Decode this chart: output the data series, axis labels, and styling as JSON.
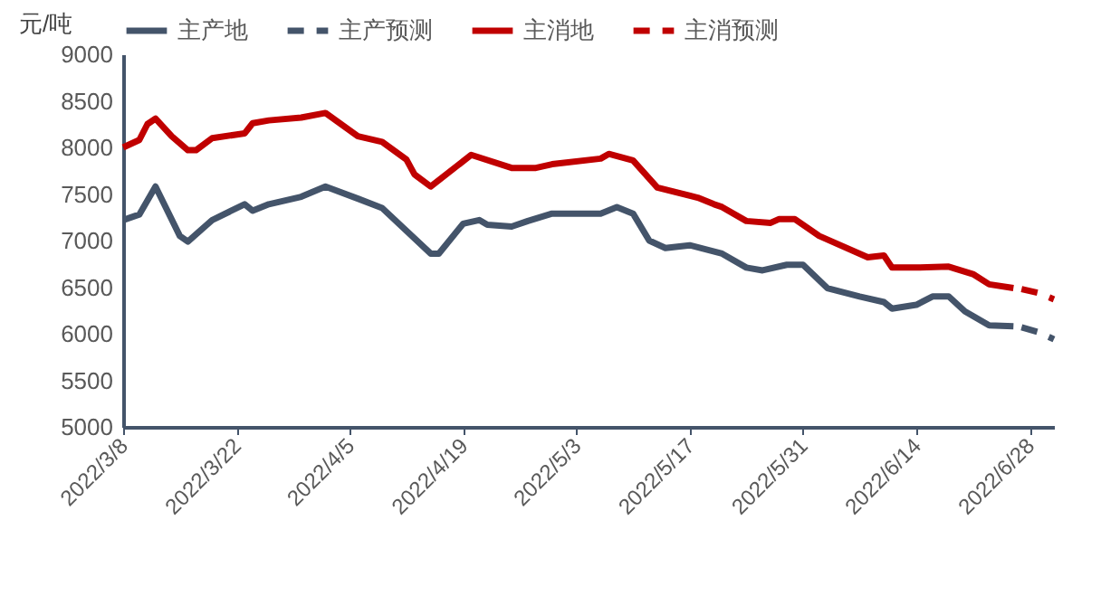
{
  "chart_data": {
    "type": "line",
    "ylabel": "元/吨",
    "legend": "top",
    "grid": false,
    "xlim": [
      "2022-03-08",
      "2022-07-01"
    ],
    "xticks": [
      {
        "value": "2022-03-08",
        "label": "2022/3/8"
      },
      {
        "value": "2022-03-22",
        "label": "2022/3/22"
      },
      {
        "value": "2022-04-05",
        "label": "2022/4/5"
      },
      {
        "value": "2022-04-19",
        "label": "2022/4/19"
      },
      {
        "value": "2022-05-03",
        "label": "2022/5/3"
      },
      {
        "value": "2022-05-17",
        "label": "2022/5/17"
      },
      {
        "value": "2022-05-31",
        "label": "2022/5/31"
      },
      {
        "value": "2022-06-14",
        "label": "2022/6/14"
      },
      {
        "value": "2022-06-28",
        "label": "2022/6/28"
      }
    ],
    "ylim": [
      5000,
      9000
    ],
    "yticks": [
      5000,
      5500,
      6000,
      6500,
      7000,
      7500,
      8000,
      8500,
      9000
    ],
    "series": [
      {
        "name": "主产地",
        "color": "#44546a",
        "line_style": "solid",
        "x": [
          "2022-03-08",
          "2022-03-10",
          "2022-03-12",
          "2022-03-15",
          "2022-03-16",
          "2022-03-19",
          "2022-03-23",
          "2022-03-24",
          "2022-03-26",
          "2022-03-30",
          "2022-04-02",
          "2022-04-06",
          "2022-04-09",
          "2022-04-15",
          "2022-04-16",
          "2022-04-19",
          "2022-04-21",
          "2022-04-22",
          "2022-04-25",
          "2022-04-27",
          "2022-04-30",
          "2022-05-06",
          "2022-05-08",
          "2022-05-10",
          "2022-05-12",
          "2022-05-14",
          "2022-05-17",
          "2022-05-21",
          "2022-05-24",
          "2022-05-26",
          "2022-05-29",
          "2022-05-31",
          "2022-06-03",
          "2022-06-07",
          "2022-06-10",
          "2022-06-11",
          "2022-06-14",
          "2022-06-16",
          "2022-06-18",
          "2022-06-20",
          "2022-06-23",
          "2022-06-26"
        ],
        "values": [
          7220,
          7280,
          7580,
          7050,
          6990,
          7220,
          7390,
          7320,
          7390,
          7470,
          7580,
          7450,
          7350,
          6860,
          6860,
          7180,
          7220,
          7170,
          7150,
          7210,
          7290,
          7290,
          7360,
          7290,
          7000,
          6920,
          6950,
          6860,
          6710,
          6680,
          6740,
          6740,
          6490,
          6400,
          6340,
          6270,
          6310,
          6400,
          6400,
          6240,
          6090,
          6080
        ]
      },
      {
        "name": "主产预测",
        "color": "#44546a",
        "line_style": "dashed",
        "x": [
          "2022-06-27",
          "2022-06-29",
          "2022-07-01"
        ],
        "values": [
          6070,
          6020,
          5940
        ]
      },
      {
        "name": "主消地",
        "color": "#c00000",
        "line_style": "solid",
        "x": [
          "2022-03-08",
          "2022-03-10",
          "2022-03-11",
          "2022-03-12",
          "2022-03-14",
          "2022-03-16",
          "2022-03-17",
          "2022-03-19",
          "2022-03-23",
          "2022-03-24",
          "2022-03-26",
          "2022-03-30",
          "2022-04-02",
          "2022-04-06",
          "2022-04-09",
          "2022-04-12",
          "2022-04-13",
          "2022-04-15",
          "2022-04-20",
          "2022-04-25",
          "2022-04-28",
          "2022-04-30",
          "2022-05-06",
          "2022-05-07",
          "2022-05-10",
          "2022-05-13",
          "2022-05-18",
          "2022-05-20",
          "2022-05-21",
          "2022-05-24",
          "2022-05-27",
          "2022-05-28",
          "2022-05-30",
          "2022-06-02",
          "2022-06-08",
          "2022-06-10",
          "2022-06-11",
          "2022-06-14",
          "2022-06-18",
          "2022-06-21",
          "2022-06-23",
          "2022-06-26"
        ],
        "values": [
          8000,
          8080,
          8250,
          8310,
          8120,
          7970,
          7970,
          8100,
          8150,
          8260,
          8290,
          8320,
          8370,
          8120,
          8060,
          7870,
          7710,
          7580,
          7920,
          7780,
          7780,
          7820,
          7880,
          7930,
          7860,
          7570,
          7460,
          7390,
          7360,
          7210,
          7190,
          7230,
          7230,
          7050,
          6820,
          6840,
          6710,
          6710,
          6720,
          6640,
          6530,
          6490
        ]
      },
      {
        "name": "主消预测",
        "color": "#c00000",
        "line_style": "dashed",
        "x": [
          "2022-06-27",
          "2022-06-29",
          "2022-07-01"
        ],
        "values": [
          6480,
          6440,
          6370
        ]
      }
    ]
  }
}
